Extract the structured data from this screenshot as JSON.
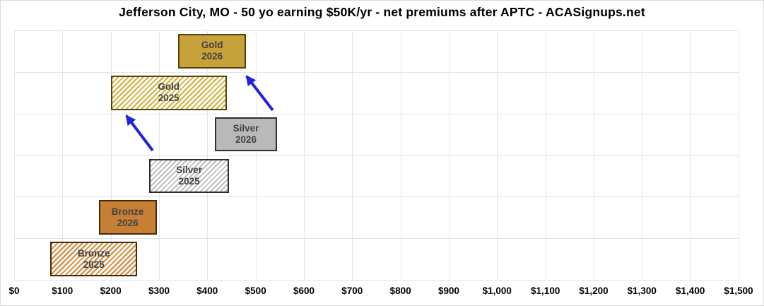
{
  "title": "Jefferson City, MO - 50 yo earning $50K/yr - net premiums after APTC - ACASignups.net",
  "colors": {
    "gold": "#c7a23b",
    "silver": "#b9b9b9",
    "bronze": "#c77f35",
    "arrow_blue": "#2222dd",
    "gridline": "#e4e4e4",
    "bar_label_text": "#424242"
  },
  "chart_data": {
    "type": "bar",
    "orientation": "horizontal-range",
    "title": "Jefferson City, MO - 50 yo earning $50K/yr - net premiums after APTC - ACASignups.net",
    "xlabel": "",
    "ylabel": "",
    "grid": true,
    "legend": "none",
    "x_axis": {
      "min": 0,
      "max": 1500,
      "tick_interval": 100,
      "tick_labels": [
        "$0",
        "$100",
        "$200",
        "$300",
        "$400",
        "$500",
        "$600",
        "$700",
        "$800",
        "$900",
        "$1,000",
        "$1,100",
        "$1,200",
        "$1,300",
        "$1,400",
        "$1,500"
      ]
    },
    "bars": [
      {
        "name": "Gold 2026",
        "label_line1": "Gold",
        "label_line2": "2026",
        "min": 340,
        "max": 480,
        "tier": "gold",
        "style": "solid"
      },
      {
        "name": "Gold 2025",
        "label_line1": "Gold",
        "label_line2": "2025",
        "min": 200,
        "max": 440,
        "tier": "gold",
        "style": "hatch"
      },
      {
        "name": "Silver 2026",
        "label_line1": "Silver",
        "label_line2": "2026",
        "min": 415,
        "max": 545,
        "tier": "silver",
        "style": "solid"
      },
      {
        "name": "Silver 2025",
        "label_line1": "Silver",
        "label_line2": "2025",
        "min": 280,
        "max": 445,
        "tier": "silver",
        "style": "hatch"
      },
      {
        "name": "Bronze 2026",
        "label_line1": "Bronze",
        "label_line2": "2026",
        "min": 175,
        "max": 295,
        "tier": "bronze",
        "style": "solid"
      },
      {
        "name": "Bronze 2025",
        "label_line1": "Bronze",
        "label_line2": "2025",
        "min": 75,
        "max": 255,
        "tier": "bronze",
        "style": "hatch"
      }
    ],
    "annotations": [
      {
        "type": "arrow",
        "from_xy": [
          385,
          155
        ],
        "to_xy": [
          348,
          107
        ],
        "color": "#2222dd",
        "meaning": "Silver 2026 toward Gold 2026"
      },
      {
        "type": "arrow",
        "from_xy": [
          215,
          212
        ],
        "to_xy": [
          178,
          163
        ],
        "color": "#2222dd",
        "meaning": "Silver 2025 toward Gold 2025"
      }
    ]
  }
}
